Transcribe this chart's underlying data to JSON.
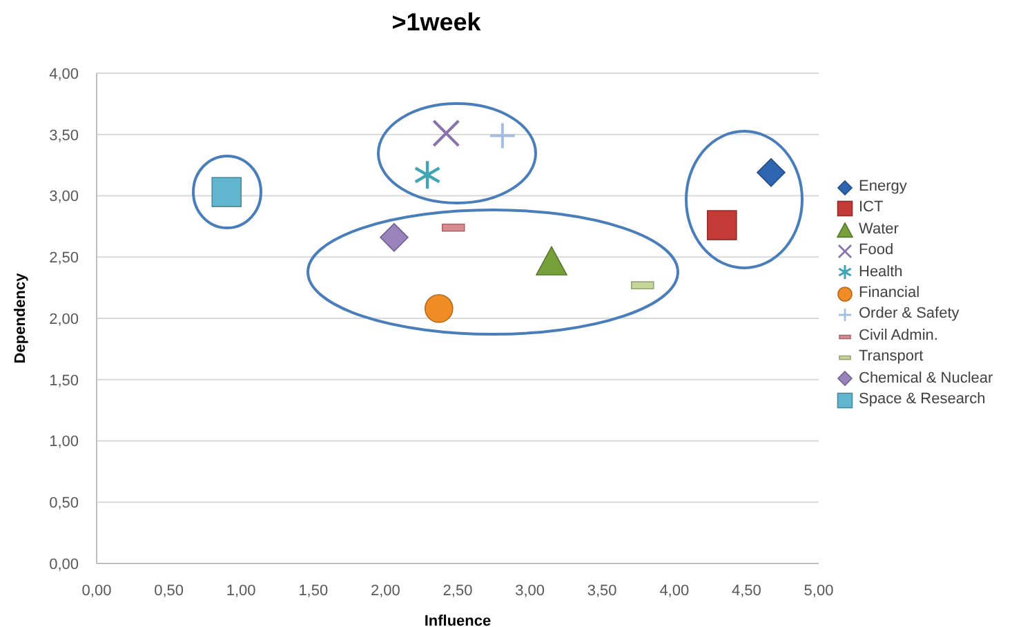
{
  "chart_data": {
    "type": "scatter",
    "title": ">1week",
    "xlabel": "Influence",
    "ylabel": "Dependency",
    "xlim": [
      0,
      5
    ],
    "ylim": [
      0,
      4
    ],
    "xticks": [
      {
        "value": 0,
        "label": "0,00"
      },
      {
        "value": 0.5,
        "label": "0,50"
      },
      {
        "value": 1,
        "label": "1,00"
      },
      {
        "value": 1.5,
        "label": "1,50"
      },
      {
        "value": 2,
        "label": "2,00"
      },
      {
        "value": 2.5,
        "label": "2,50"
      },
      {
        "value": 3,
        "label": "3,00"
      },
      {
        "value": 3.5,
        "label": "3,50"
      },
      {
        "value": 4,
        "label": "4,00"
      },
      {
        "value": 4.5,
        "label": "4,50"
      },
      {
        "value": 5,
        "label": "5,00"
      }
    ],
    "yticks": [
      {
        "value": 0,
        "label": "0,00"
      },
      {
        "value": 0.5,
        "label": "0,50"
      },
      {
        "value": 1,
        "label": "1,00"
      },
      {
        "value": 1.5,
        "label": "1,50"
      },
      {
        "value": 2,
        "label": "2,00"
      },
      {
        "value": 2.5,
        "label": "2,50"
      },
      {
        "value": 3,
        "label": "3,00"
      },
      {
        "value": 3.5,
        "label": "3,50"
      },
      {
        "value": 4,
        "label": "4,00"
      }
    ],
    "grid": "y",
    "legend": "right",
    "series": [
      {
        "name": "Energy",
        "color": "#2e65b1",
        "marker": "diamond",
        "x": [
          4.67
        ],
        "values": [
          3.19
        ]
      },
      {
        "name": "ICT",
        "color": "#c33a36",
        "marker": "square",
        "x": [
          4.33
        ],
        "values": [
          2.76
        ]
      },
      {
        "name": "Water",
        "color": "#76a03a",
        "marker": "triangle",
        "x": [
          3.15
        ],
        "values": [
          2.46
        ]
      },
      {
        "name": "Food",
        "color": "#8a73ad",
        "marker": "cross",
        "x": [
          2.42
        ],
        "values": [
          3.51
        ]
      },
      {
        "name": "Health",
        "color": "#41a5b5",
        "marker": "star",
        "x": [
          2.29
        ],
        "values": [
          3.17
        ]
      },
      {
        "name": "Financial",
        "color": "#f08c24",
        "marker": "circle",
        "x": [
          2.37
        ],
        "values": [
          2.08
        ]
      },
      {
        "name": "Order & Safety",
        "color": "#a5bde0",
        "marker": "plus",
        "x": [
          2.81
        ],
        "values": [
          3.49
        ]
      },
      {
        "name": "Civil Admin.",
        "color": "#d98c90",
        "x": [
          2.47
        ],
        "values": [
          2.74
        ]
      },
      {
        "name": "Transport",
        "color": "#c5d89a",
        "x": [
          3.78
        ],
        "values": [
          2.27
        ]
      },
      {
        "name": "Chemical & Nuclear",
        "color": "#9883bd",
        "marker": "diamond",
        "x": [
          2.06
        ],
        "values": [
          2.66
        ]
      },
      {
        "name": "Space & Research",
        "color": "#62b5cf",
        "marker": "square",
        "x": [
          0.9
        ],
        "values": [
          3.03
        ]
      }
    ]
  }
}
